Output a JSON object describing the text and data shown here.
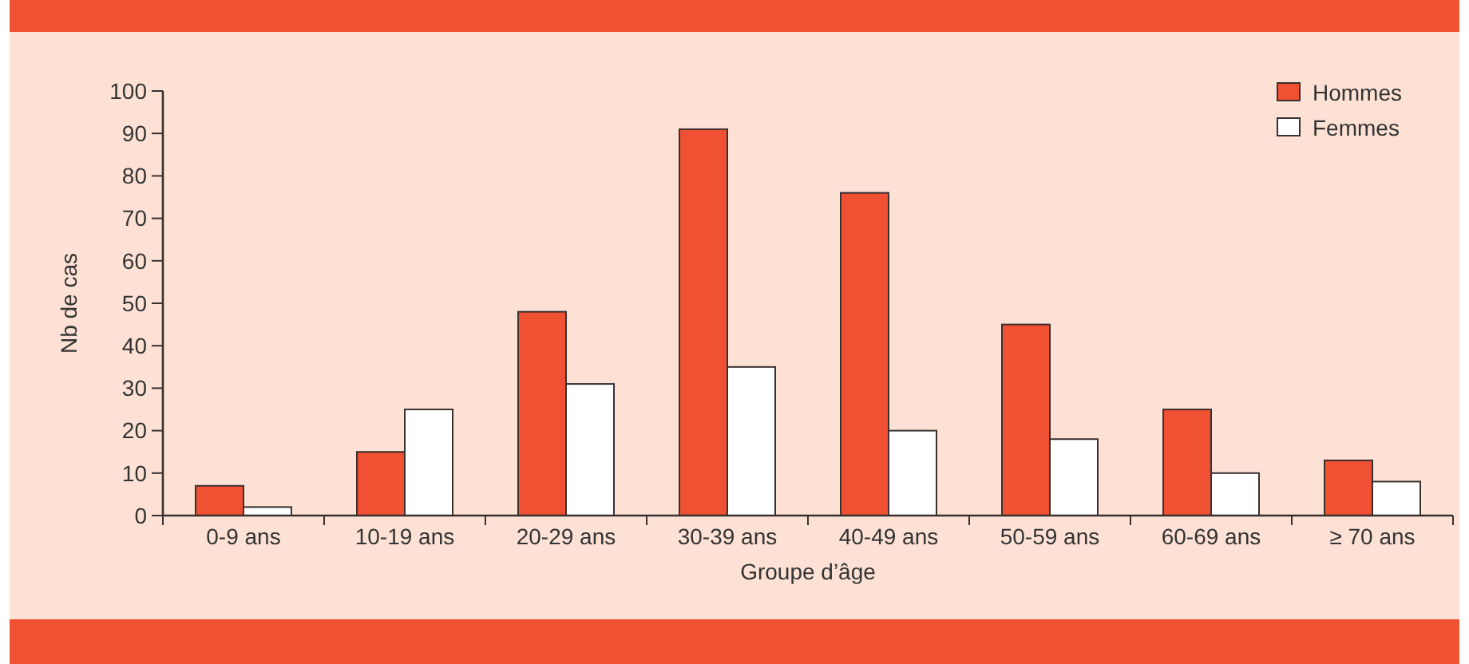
{
  "chart_data": {
    "type": "bar",
    "xlabel": "Groupe d’âge",
    "ylabel": "Nb de cas",
    "categories": [
      "0-9 ans",
      "10-19 ans",
      "20-29 ans",
      "30-39 ans",
      "40-49 ans",
      "50-59 ans",
      "60-69 ans",
      "≥ 70 ans"
    ],
    "series": [
      {
        "name": "Hommes",
        "color": "#f05133",
        "values": [
          7,
          15,
          48,
          91,
          76,
          45,
          25,
          13
        ]
      },
      {
        "name": "Femmes",
        "color": "#ffffff",
        "values": [
          2,
          25,
          31,
          35,
          20,
          18,
          10,
          8
        ]
      }
    ],
    "ylim": [
      0,
      100
    ],
    "yticks": [
      0,
      10,
      20,
      30,
      40,
      50,
      60,
      70,
      80,
      90,
      100
    ],
    "grid": false,
    "legend": "top right"
  }
}
